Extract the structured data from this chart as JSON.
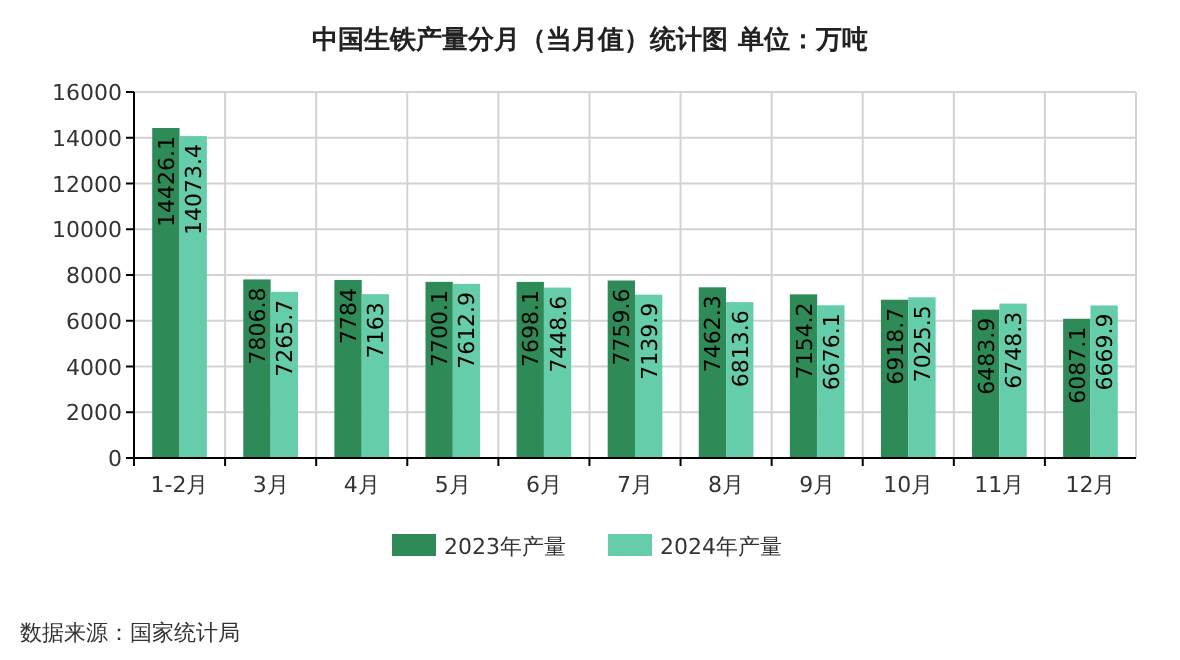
{
  "chart_data": {
    "type": "bar",
    "title": "中国生铁产量分月（当月值）统计图  单位：万吨",
    "categories": [
      "1-2月",
      "3月",
      "4月",
      "5月",
      "6月",
      "7月",
      "8月",
      "9月",
      "10月",
      "11月",
      "12月"
    ],
    "series": [
      {
        "name": "2023年产量",
        "color": "#2e8b57",
        "values": [
          14426.1,
          7806.8,
          7784,
          7700.1,
          7698.1,
          7759.6,
          7462.3,
          7154.2,
          6918.7,
          6483.9,
          6087.1
        ]
      },
      {
        "name": "2024年产量",
        "color": "#66cdaa",
        "values": [
          14073.4,
          7265.7,
          7163,
          7612.9,
          7448.6,
          7139.9,
          6813.6,
          6676.1,
          7025.5,
          6748.3,
          6669.9
        ]
      }
    ],
    "ylim": [
      0,
      16000
    ],
    "yticks": [
      0,
      2000,
      4000,
      6000,
      8000,
      10000,
      12000,
      14000,
      16000
    ],
    "grid": true,
    "legend": "bottom",
    "data_labels": true,
    "annotations": [
      "数据来源：国家统计局"
    ]
  }
}
